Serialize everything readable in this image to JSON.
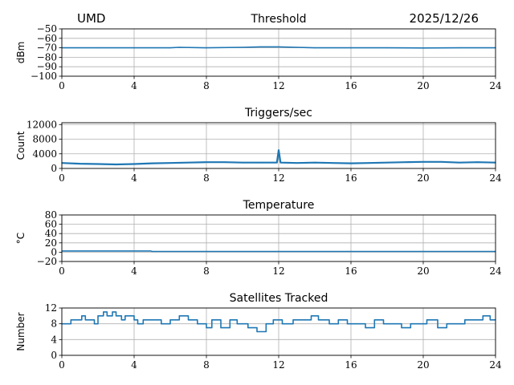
{
  "header": {
    "site": "UMD",
    "date": "2025/12/26"
  },
  "chart_data": [
    {
      "type": "line",
      "title": "Threshold",
      "ylabel": "dBm",
      "xlim": [
        0,
        24
      ],
      "ylim": [
        -100,
        -50
      ],
      "xticks": [
        "0",
        "4",
        "8",
        "12",
        "16",
        "20",
        "24"
      ],
      "yticks": [
        "−50",
        "−60",
        "−70",
        "−80",
        "−90",
        "−100"
      ],
      "ytick_values": [
        -50,
        -60,
        -70,
        -80,
        -90,
        -100
      ],
      "grid": true,
      "color": "#1f77b4",
      "x": [
        0,
        2,
        4,
        6,
        6.5,
        8,
        10,
        11,
        12,
        13,
        14,
        16,
        18,
        20,
        22,
        24
      ],
      "y": [
        -70,
        -70,
        -70,
        -70,
        -69.5,
        -70,
        -69.5,
        -69,
        -69,
        -69.5,
        -70,
        -70,
        -70,
        -70.2,
        -70,
        -70
      ]
    },
    {
      "type": "line",
      "title": "Triggers/sec",
      "ylabel": "Count",
      "xlim": [
        0,
        24
      ],
      "ylim": [
        0,
        12500
      ],
      "xticks": [
        "0",
        "4",
        "8",
        "12",
        "16",
        "20",
        "24"
      ],
      "yticks": [
        "0",
        "4000",
        "8000",
        "12000"
      ],
      "ytick_values": [
        0,
        4000,
        8000,
        12000
      ],
      "grid": true,
      "color": "#1f77b4",
      "x": [
        0,
        1,
        2,
        3,
        4,
        5,
        6,
        7,
        8,
        9,
        10,
        11,
        11.9,
        12,
        12.1,
        13,
        14,
        15,
        16,
        17,
        18,
        19,
        20,
        21,
        22,
        23,
        24
      ],
      "y": [
        1500,
        1300,
        1200,
        1100,
        1200,
        1400,
        1500,
        1600,
        1700,
        1700,
        1600,
        1600,
        1600,
        5000,
        1600,
        1500,
        1600,
        1500,
        1400,
        1500,
        1600,
        1700,
        1800,
        1800,
        1600,
        1700,
        1600
      ]
    },
    {
      "type": "line",
      "title": "Temperature",
      "ylabel": "°C",
      "xlim": [
        0,
        24
      ],
      "ylim": [
        -20,
        80
      ],
      "xticks": [
        "0",
        "4",
        "8",
        "12",
        "16",
        "20",
        "24"
      ],
      "yticks": [
        "−20",
        "0",
        "20",
        "40",
        "60",
        "80"
      ],
      "ytick_values": [
        -20,
        0,
        20,
        40,
        60,
        80
      ],
      "grid": true,
      "color": "#1f77b4",
      "x": [
        0,
        4.9,
        5,
        24
      ],
      "y": [
        2.5,
        2.5,
        1.5,
        1.5
      ]
    },
    {
      "type": "line",
      "title": "Satellites Tracked",
      "ylabel": "Number",
      "xlim": [
        0,
        24
      ],
      "ylim": [
        0,
        12
      ],
      "xticks": [
        "0",
        "4",
        "8",
        "12",
        "16",
        "20",
        "24"
      ],
      "yticks": [
        "0",
        "4",
        "8",
        "12"
      ],
      "ytick_values": [
        0,
        4,
        8,
        12
      ],
      "grid": true,
      "color": "#1f77b4",
      "x": [
        0,
        0.5,
        0.7,
        1.1,
        1.3,
        1.8,
        2.0,
        2.3,
        2.5,
        2.8,
        3.0,
        3.3,
        3.5,
        3.7,
        4.0,
        4.2,
        4.5,
        5.0,
        5.5,
        6.0,
        6.5,
        7.0,
        7.5,
        8.0,
        8.3,
        8.8,
        9.3,
        9.7,
        10.3,
        10.8,
        11.3,
        11.7,
        12.2,
        12.8,
        13.3,
        13.8,
        14.2,
        14.8,
        15.3,
        15.8,
        16.2,
        16.8,
        17.3,
        17.8,
        18.3,
        18.8,
        19.3,
        19.7,
        20.2,
        20.8,
        21.3,
        21.8,
        22.3,
        22.8,
        23.3,
        23.7,
        24
      ],
      "y": [
        8,
        9,
        9,
        10,
        9,
        8,
        10,
        11,
        10,
        11,
        10,
        9,
        10,
        10,
        9,
        8,
        9,
        9,
        8,
        9,
        10,
        9,
        8,
        7,
        9,
        7,
        9,
        8,
        7,
        6,
        8,
        9,
        8,
        9,
        9,
        10,
        9,
        8,
        9,
        8,
        8,
        7,
        9,
        8,
        8,
        7,
        8,
        8,
        9,
        7,
        8,
        8,
        9,
        9,
        10,
        9,
        9
      ]
    }
  ]
}
